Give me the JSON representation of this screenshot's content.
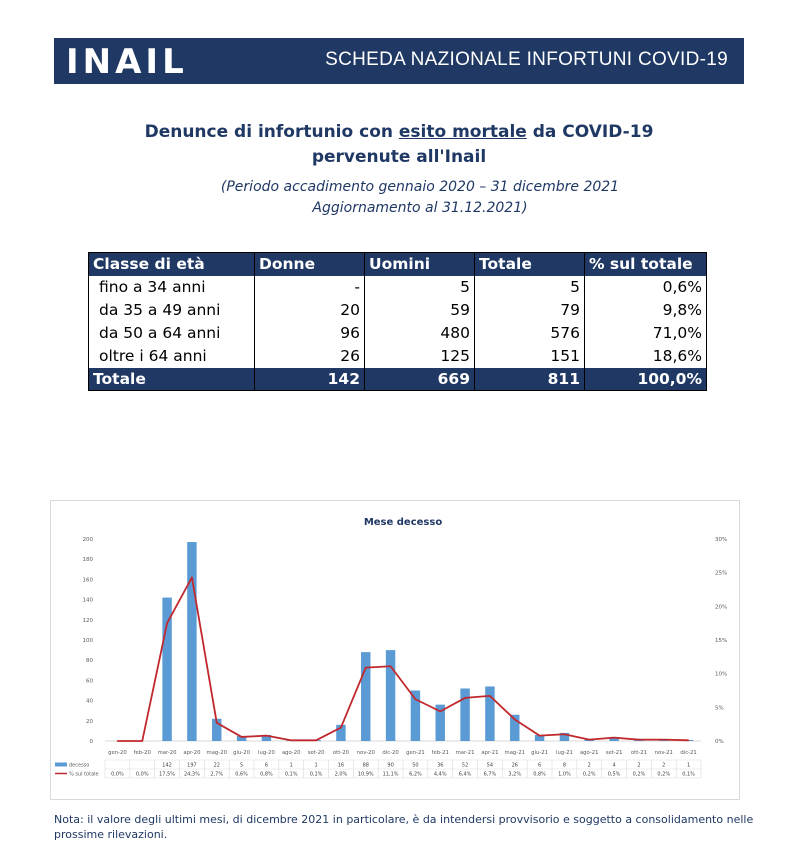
{
  "header": {
    "logo": "INAIL",
    "title": "SCHEDA NAZIONALE INFORTUNI COVID-19"
  },
  "title": {
    "part1": "Denunce di infortunio con ",
    "underlined": "esito mortale",
    "part2": " da COVID-19",
    "line2": "pervenute all'Inail"
  },
  "subtitle": {
    "line1": "(Periodo accadimento gennaio 2020 – 31 dicembre 2021",
    "line2": "Aggiornamento al 31.12.2021)"
  },
  "age_table": {
    "headers": [
      "Classe di età",
      "Donne",
      "Uomini",
      "Totale",
      "% sul totale"
    ],
    "rows": [
      [
        "fino a 34 anni",
        "-",
        "5",
        "5",
        "0,6%"
      ],
      [
        "da 35 a 49 anni",
        "20",
        "59",
        "79",
        "9,8%"
      ],
      [
        "da 50 a 64 anni",
        "96",
        "480",
        "576",
        "71,0%"
      ],
      [
        "oltre i 64 anni",
        "26",
        "125",
        "151",
        "18,6%"
      ]
    ],
    "total": [
      "Totale",
      "142",
      "669",
      "811",
      "100,0%"
    ]
  },
  "chart_data": {
    "type": "bar",
    "title": "Mese decesso",
    "categories": [
      "gen-20",
      "feb-20",
      "mar-20",
      "apr-20",
      "mag-20",
      "giu-20",
      "lug-20",
      "ago-20",
      "set-20",
      "ott-20",
      "nov-20",
      "dic-20",
      "gen-21",
      "feb-21",
      "mar-21",
      "apr-21",
      "mag-21",
      "giu-21",
      "lug-21",
      "ago-21",
      "set-21",
      "ott-21",
      "nov-21",
      "dic-21"
    ],
    "series": [
      {
        "name": "decesso",
        "type": "bar",
        "axis": "left",
        "color": "#5b9bd5",
        "values": [
          0,
          0,
          142,
          197,
          22,
          5,
          6,
          1,
          1,
          16,
          88,
          90,
          50,
          36,
          52,
          54,
          26,
          6,
          8,
          2,
          4,
          2,
          2,
          1
        ],
        "labels": [
          "",
          "",
          "142",
          "197",
          "22",
          "5",
          "6",
          "1",
          "1",
          "16",
          "88",
          "90",
          "50",
          "36",
          "52",
          "54",
          "26",
          "6",
          "8",
          "2",
          "4",
          "2",
          "2",
          "1"
        ]
      },
      {
        "name": "% sul totale",
        "type": "line",
        "axis": "right",
        "color": "#c0282d",
        "values": [
          0.0,
          0.0,
          17.5,
          24.3,
          2.7,
          0.6,
          0.8,
          0.1,
          0.1,
          2.0,
          10.9,
          11.1,
          6.2,
          4.4,
          6.4,
          6.7,
          3.2,
          0.8,
          1.0,
          0.2,
          0.5,
          0.2,
          0.2,
          0.1
        ],
        "labels": [
          "0,0%",
          "0,0%",
          "17,5%",
          "24,3%",
          "2,7%",
          "0,6%",
          "0,8%",
          "0,1%",
          "0,1%",
          "2,0%",
          "10,9%",
          "11,1%",
          "6,2%",
          "4,4%",
          "6,4%",
          "6,7%",
          "3,2%",
          "0,8%",
          "1,0%",
          "0,2%",
          "0,5%",
          "0,2%",
          "0,2%",
          "0,1%"
        ]
      }
    ],
    "y_left": {
      "min": 0,
      "max": 200,
      "ticks": [
        "0",
        "20",
        "40",
        "60",
        "80",
        "100",
        "120",
        "140",
        "160",
        "180",
        "200"
      ]
    },
    "y_right": {
      "min": 0,
      "max": 30,
      "ticks": [
        "0%",
        "5%",
        "10%",
        "15%",
        "20%",
        "25%",
        "30%"
      ]
    },
    "grid": false,
    "legend": "data-table-below"
  },
  "note": "Nota: il valore degli ultimi mesi, di dicembre 2021 in particolare, è da intendersi provvisorio e soggetto a consolidamento nelle prossime rilevazioni."
}
